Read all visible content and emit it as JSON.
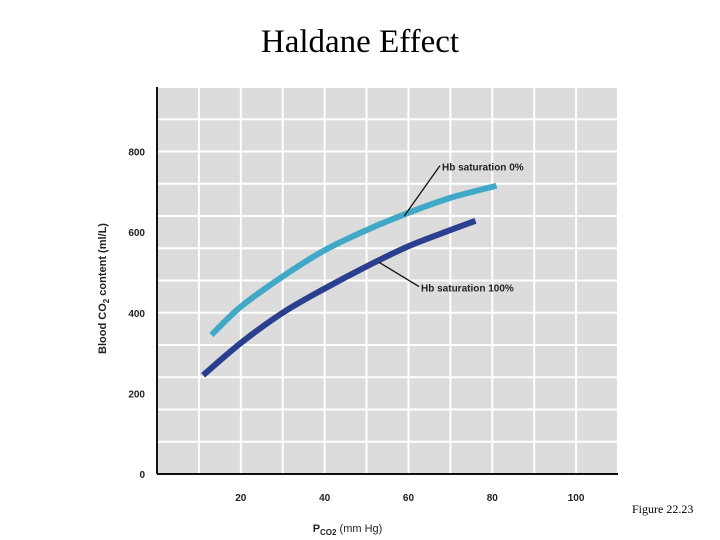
{
  "title": "Haldane Effect",
  "figure_caption": "Figure 22.23",
  "chart_data": {
    "type": "line",
    "title": "Haldane Effect",
    "xlabel": {
      "main": "P",
      "sub": "CO2",
      "unit": " (mm Hg)"
    },
    "ylabel": {
      "pre": "Blood CO",
      "sub": "2",
      "post": " content (ml/L)"
    },
    "xlim": [
      0,
      110
    ],
    "ylim": [
      0,
      960
    ],
    "x_ticks": [
      20,
      40,
      60,
      80,
      100
    ],
    "y_ticks": [
      0,
      200,
      400,
      600,
      800
    ],
    "x_gridlines": [
      10,
      20,
      30,
      40,
      50,
      60,
      70,
      80,
      90,
      100,
      110
    ],
    "y_gridlines": [
      80,
      160,
      240,
      320,
      400,
      480,
      560,
      640,
      720,
      800,
      880,
      960
    ],
    "grid": true,
    "plot_background": "#dcdcdc",
    "series": [
      {
        "name": "Hb saturation 0%",
        "color": "#3fa9c7",
        "x": [
          13,
          20,
          30,
          40,
          50,
          60,
          70,
          81
        ],
        "y": [
          345,
          415,
          490,
          555,
          605,
          648,
          685,
          715
        ]
      },
      {
        "name": "Hb saturation 100%",
        "color": "#2a3f8f",
        "x": [
          11,
          20,
          30,
          40,
          50,
          60,
          70,
          76
        ],
        "y": [
          245,
          325,
          400,
          460,
          515,
          565,
          605,
          628
        ]
      }
    ],
    "annotations": [
      {
        "text": "Hb saturation 0%",
        "series": 0,
        "point_x": 59,
        "point_y": 640,
        "label_x": 68,
        "label_y": 760
      },
      {
        "text": "Hb saturation 100%",
        "series": 1,
        "point_x": 53,
        "point_y": 525,
        "label_x": 63,
        "label_y": 460
      }
    ]
  }
}
